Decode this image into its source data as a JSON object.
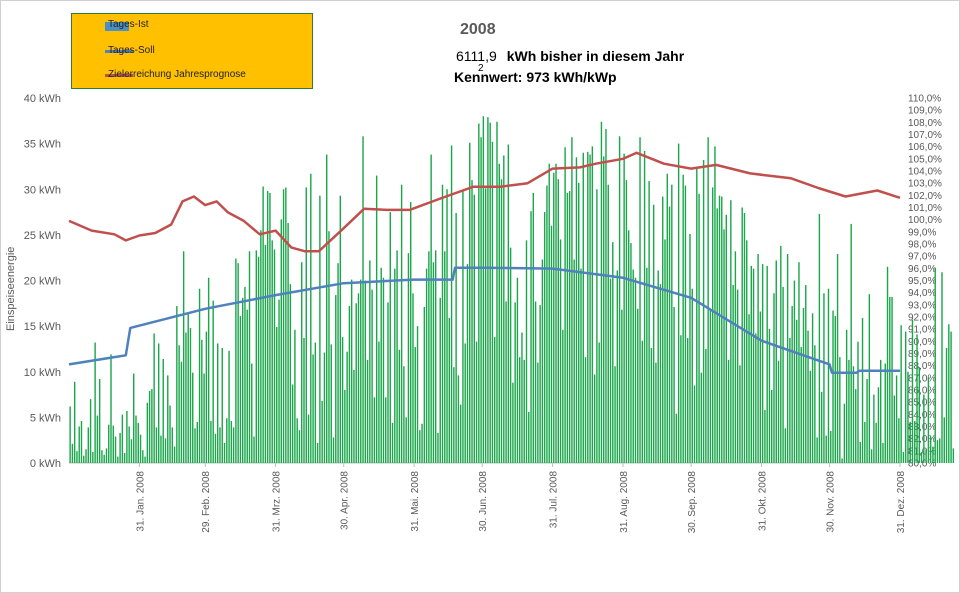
{
  "title": "2008",
  "summary": {
    "value": "6111,9",
    "unit_text": "kWh bisher in diesem Jahr"
  },
  "kennwert": "Kennwert: 973 kWh/kWp",
  "kennwert_superscript": "2",
  "legend": {
    "items": [
      {
        "label": "Tages-Ist",
        "color": "#4A90C2"
      },
      {
        "label": "Tages-Soll",
        "color": "#4A7EC2"
      },
      {
        "label": "Zielerreichung Jahresprognose",
        "color": "#C0504D"
      }
    ],
    "background": "#FFC000"
  },
  "colors": {
    "bars": "#1AA64A",
    "soll": "#4F81BD",
    "ziel": "#C0504D",
    "axis_text": "#595959"
  },
  "chart_data": {
    "type": "bar",
    "ylabel": "Einspeiseenergie",
    "y_left_ticks": [
      "0 kWh",
      "5 kWh",
      "10 kWh",
      "15 kWh",
      "20 kWh",
      "25 kWh",
      "30 kWh",
      "35 kWh",
      "40 kWh"
    ],
    "ylim_left": [
      0,
      40
    ],
    "ylim_right": [
      80,
      110
    ],
    "y_right_ticks": [
      "80,0%",
      "81,0%",
      "82,0%",
      "83,0%",
      "84,0%",
      "85,0%",
      "86,0%",
      "87,0%",
      "88,0%",
      "89,0%",
      "90,0%",
      "91,0%",
      "92,0%",
      "93,0%",
      "94,0%",
      "95,0%",
      "96,0%",
      "97,0%",
      "98,0%",
      "99,0%",
      "100,0%",
      "101,0%",
      "102,0%",
      "103,0%",
      "104,0%",
      "105,0%",
      "106,0%",
      "107,0%",
      "108,0%",
      "109,0%",
      "110,0%"
    ],
    "x_ticks": [
      "31. Jan. 2008",
      "29. Feb. 2008",
      "31. Mrz. 2008",
      "30. Apr. 2008",
      "31. Mai. 2008",
      "30. Jun. 2008",
      "31. Jul. 2008",
      "31. Aug. 2008",
      "30. Sep. 2008",
      "31. Okt. 2008",
      "30. Nov. 2008",
      "31. Dez. 2008"
    ],
    "x_tick_days": [
      31,
      60,
      91,
      121,
      152,
      182,
      213,
      244,
      274,
      305,
      335,
      366
    ],
    "days_in_year": 366,
    "series": [
      {
        "name": "Tages-Ist",
        "kind": "bar",
        "values": [
          6.2,
          2.1,
          8.9,
          1.3,
          4.0,
          4.6,
          0.8,
          1.5,
          3.9,
          7.0,
          1.2,
          13.2,
          5.2,
          9.2,
          1.4,
          0.9,
          1.6,
          4.2,
          11.9,
          4.1,
          2.9,
          0.7,
          3.3,
          5.3,
          1.1,
          5.7,
          4.0,
          2.6,
          9.8,
          5.2,
          4.4,
          3.1,
          1.4,
          0.7,
          6.6,
          7.9,
          8.1,
          14.2,
          3.9,
          13.1,
          3.0,
          11.4,
          2.7,
          9.6,
          6.3,
          3.9,
          1.8,
          17.2,
          12.9,
          11.1,
          23.2,
          14.3,
          16.4,
          14.8,
          9.9,
          3.8,
          4.5,
          19.1,
          13.5,
          9.8,
          14.4,
          20.3,
          4.6,
          17.8,
          3.2,
          13.1,
          3.9,
          12.6,
          2.2,
          4.9,
          12.3,
          4.6,
          3.9,
          22.4,
          21.9,
          16.1,
          18.1,
          19.3,
          16.8,
          23.2,
          10.9,
          2.9,
          23.3,
          22.6,
          25.5,
          30.3,
          23.9,
          29.8,
          29.6,
          24.4,
          23.4,
          14.9,
          17.9,
          26.7,
          30.0,
          30.2,
          26.3,
          19.6,
          8.6,
          14.6,
          4.9,
          3.6,
          22.0,
          13.7,
          30.2,
          5.3,
          31.7,
          11.9,
          13.2,
          2.2,
          29.3,
          6.8,
          12.1,
          33.8,
          25.4,
          13.0,
          2.8,
          18.4,
          21.9,
          29.3,
          13.8,
          8.0,
          12.2,
          17.2,
          20.1,
          10.2,
          17.5,
          18.6,
          20.1,
          35.8,
          20.0,
          11.3,
          22.2,
          19.0,
          7.2,
          31.5,
          13.3,
          21.4,
          20.3,
          7.2,
          17.6,
          27.5,
          4.4,
          21.3,
          23.3,
          12.4,
          30.5,
          10.6,
          5.0,
          23.0,
          28.6,
          18.6,
          12.7,
          15.0,
          3.6,
          4.3,
          17.1,
          21.3,
          23.2,
          33.8,
          22.0,
          23.3,
          3.3,
          18.1,
          30.5,
          23.2,
          30.0,
          15.9,
          34.8,
          10.5,
          27.4,
          9.6,
          6.4,
          29.8,
          13.1,
          21.8,
          35.1,
          31.0,
          29.4,
          13.3,
          37.2,
          35.7,
          38.0,
          30.1,
          37.9,
          37.3,
          35.2,
          13.8,
          37.4,
          32.8,
          31.1,
          33.7,
          17.7,
          34.9,
          23.6,
          8.8,
          17.6,
          20.3,
          11.6,
          14.3,
          11.3,
          24.4,
          5.6,
          27.6,
          29.6,
          17.7,
          11.0,
          17.3,
          22.3,
          27.5,
          30.4,
          32.8,
          26.0,
          31.8,
          32.8,
          31.1,
          24.5,
          14.6,
          34.6,
          29.6,
          29.8,
          35.7,
          22.3,
          33.5,
          30.7,
          21.3,
          34.0,
          11.6,
          34.1,
          33.8,
          34.7,
          9.7,
          30.0,
          13.2,
          37.4,
          33.6,
          36.6,
          30.5,
          20.2,
          24.2,
          10.6,
          21.1,
          35.8,
          16.8,
          33.9,
          31.0,
          25.5,
          24.1,
          21.2,
          20.3,
          16.9,
          35.7,
          13.4,
          34.2,
          21.4,
          30.9,
          12.6,
          28.3,
          11.0,
          21.1,
          19.6,
          29.2,
          24.5,
          31.7,
          28.1,
          30.5,
          17.1,
          5.4,
          35.0,
          14.0,
          31.6,
          30.4,
          13.7,
          25.1,
          19.1,
          8.5,
          32.5,
          29.5,
          9.9,
          33.2,
          12.5,
          35.7,
          16.8,
          30.2,
          34.7,
          27.9,
          29.3,
          29.2,
          25.6,
          27.2,
          11.3,
          28.8,
          19.5,
          23.2,
          19.0,
          10.7,
          28.0,
          27.4,
          24.4,
          16.3,
          21.6,
          21.3,
          14.2,
          22.9,
          16.6,
          21.8,
          5.8,
          21.6,
          14.7,
          8.0,
          18.6,
          22.2,
          11.2,
          23.8,
          19.3,
          3.8,
          22.9,
          13.7,
          17.2,
          20.0,
          15.7,
          22.0,
          12.7,
          17.0,
          19.5,
          14.5,
          10.1,
          16.4,
          12.9,
          2.8,
          27.3,
          7.8,
          18.6,
          3.0,
          19.1,
          3.5,
          16.7,
          16.1,
          22.9,
          11.6,
          0.5,
          6.5,
          14.6,
          11.3,
          26.2,
          10.6,
          8.1,
          13.3,
          2.3,
          15.9,
          4.5,
          9.2,
          18.5,
          1.5,
          7.5,
          4.4,
          8.3,
          11.3,
          2.2,
          10.9,
          21.5,
          18.2,
          18.2,
          7.4,
          9.6,
          4.9,
          15.1,
          1.2,
          14.4,
          10.0,
          4.5,
          15.7,
          4.6,
          14.1,
          10.5,
          1.2,
          7.5,
          1.5,
          9.4,
          2.9,
          1.8,
          21.4,
          2.5,
          2.7,
          20.9,
          5.0,
          12.6,
          15.2,
          14.4,
          1.6
        ]
      },
      {
        "name": "Tages-Soll",
        "kind": "line",
        "axis": "left",
        "points": [
          [
            0,
            10.8
          ],
          [
            20,
            11.6
          ],
          [
            25,
            11.8
          ],
          [
            27,
            14.8
          ],
          [
            60,
            16.9
          ],
          [
            91,
            18.4
          ],
          [
            121,
            19.7
          ],
          [
            152,
            20.1
          ],
          [
            169,
            20.1
          ],
          [
            170,
            21.4
          ],
          [
            182,
            21.4
          ],
          [
            213,
            21.3
          ],
          [
            244,
            20.3
          ],
          [
            274,
            18.1
          ],
          [
            305,
            13.4
          ],
          [
            335,
            10.8
          ],
          [
            336,
            9.9
          ],
          [
            347,
            9.9
          ],
          [
            348,
            10.1
          ],
          [
            366,
            10.1
          ]
        ]
      },
      {
        "name": "Zielerreichung Jahresprognose",
        "kind": "line",
        "axis": "right",
        "points": [
          [
            0,
            99.9
          ],
          [
            10,
            99.1
          ],
          [
            20,
            98.8
          ],
          [
            25,
            98.3
          ],
          [
            31,
            98.7
          ],
          [
            38,
            98.9
          ],
          [
            45,
            99.6
          ],
          [
            50,
            101.5
          ],
          [
            55,
            101.9
          ],
          [
            60,
            101.2
          ],
          [
            65,
            101.5
          ],
          [
            70,
            100.6
          ],
          [
            77,
            99.9
          ],
          [
            84,
            98.8
          ],
          [
            91,
            99.1
          ],
          [
            98,
            97.7
          ],
          [
            104,
            97.4
          ],
          [
            110,
            97.4
          ],
          [
            121,
            99.3
          ],
          [
            130,
            100.9
          ],
          [
            140,
            100.8
          ],
          [
            150,
            100.8
          ],
          [
            163,
            101.7
          ],
          [
            178,
            102.7
          ],
          [
            190,
            102.7
          ],
          [
            202,
            103.0
          ],
          [
            213,
            104.2
          ],
          [
            225,
            104.3
          ],
          [
            232,
            104.6
          ],
          [
            244,
            105.0
          ],
          [
            250,
            105.5
          ],
          [
            262,
            104.6
          ],
          [
            274,
            104.2
          ],
          [
            285,
            104.5
          ],
          [
            300,
            103.8
          ],
          [
            318,
            103.4
          ],
          [
            330,
            102.6
          ],
          [
            342,
            101.9
          ],
          [
            356,
            102.4
          ],
          [
            366,
            101.8
          ]
        ]
      }
    ],
    "grid": false,
    "legend_position": "top-left"
  }
}
